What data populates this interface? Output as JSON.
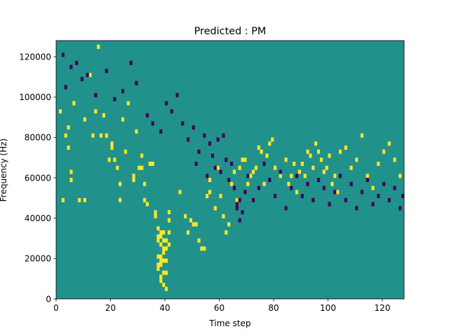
{
  "chart_data": {
    "type": "heatmap",
    "title": "Predicted : PM",
    "xlabel": "Time step",
    "ylabel": "Frequency (Hz)",
    "xlim": [
      0,
      128
    ],
    "ylim": [
      0,
      128000
    ],
    "xticks": [
      0,
      20,
      40,
      60,
      80,
      100,
      120
    ],
    "yticks": [
      0,
      20000,
      40000,
      60000,
      80000,
      100000,
      120000
    ],
    "xtick_labels": [
      "0",
      "20",
      "40",
      "60",
      "80",
      "100",
      "120"
    ],
    "ytick_labels": [
      "0",
      "20000",
      "40000",
      "60000",
      "80000",
      "100000",
      "120000"
    ],
    "grid": false,
    "colormap": "viridis",
    "levels": [
      {
        "value": 0,
        "color": "#440154"
      },
      {
        "value": 1,
        "color": "#21918c"
      },
      {
        "value": 2,
        "color": "#fde725"
      }
    ],
    "background_value": 1,
    "n_time_steps": 128,
    "n_freq_bins": 64,
    "bin_height_hz": 2000,
    "cells": {
      "high": [
        [
          1,
          46
        ],
        [
          2,
          24
        ],
        [
          3,
          40
        ],
        [
          4,
          42
        ],
        [
          4,
          37
        ],
        [
          5,
          29
        ],
        [
          5,
          31
        ],
        [
          6,
          48
        ],
        [
          8,
          24
        ],
        [
          10,
          24
        ],
        [
          10,
          44
        ],
        [
          12,
          55
        ],
        [
          13,
          40
        ],
        [
          14,
          46
        ],
        [
          15,
          62
        ],
        [
          16,
          40
        ],
        [
          17,
          45
        ],
        [
          18,
          40
        ],
        [
          19,
          34
        ],
        [
          20,
          38
        ],
        [
          20,
          37
        ],
        [
          21,
          34
        ],
        [
          22,
          32
        ],
        [
          23,
          24
        ],
        [
          23,
          28
        ],
        [
          24,
          44
        ],
        [
          25,
          36
        ],
        [
          26,
          48
        ],
        [
          28,
          30
        ],
        [
          28,
          29
        ],
        [
          29,
          41
        ],
        [
          30,
          32
        ],
        [
          31,
          35
        ],
        [
          31,
          32
        ],
        [
          32,
          28
        ],
        [
          32,
          24
        ],
        [
          33,
          23
        ],
        [
          34,
          33
        ],
        [
          35,
          33
        ],
        [
          36,
          21
        ],
        [
          36,
          20
        ],
        [
          37,
          17
        ],
        [
          37,
          15
        ],
        [
          37,
          14
        ],
        [
          37,
          10
        ],
        [
          37,
          8
        ],
        [
          37,
          7
        ],
        [
          38,
          16
        ],
        [
          38,
          15
        ],
        [
          38,
          13
        ],
        [
          38,
          10
        ],
        [
          38,
          9
        ],
        [
          38,
          8
        ],
        [
          38,
          5
        ],
        [
          38,
          4
        ],
        [
          39,
          16
        ],
        [
          39,
          14
        ],
        [
          39,
          12
        ],
        [
          39,
          11
        ],
        [
          39,
          9
        ],
        [
          39,
          6
        ],
        [
          39,
          3
        ],
        [
          40,
          14
        ],
        [
          40,
          12
        ],
        [
          40,
          9
        ],
        [
          40,
          6
        ],
        [
          40,
          2
        ],
        [
          41,
          21
        ],
        [
          41,
          19
        ],
        [
          41,
          16
        ],
        [
          41,
          13
        ],
        [
          45,
          26
        ],
        [
          47,
          20
        ],
        [
          48,
          16
        ],
        [
          49,
          19
        ],
        [
          50,
          18
        ],
        [
          51,
          18
        ],
        [
          52,
          14
        ],
        [
          53,
          12
        ],
        [
          54,
          12
        ],
        [
          55,
          25
        ],
        [
          56,
          29
        ],
        [
          56,
          26
        ],
        [
          58,
          22
        ],
        [
          59,
          32
        ],
        [
          60,
          25
        ],
        [
          61,
          20
        ],
        [
          62,
          16
        ],
        [
          63,
          18
        ],
        [
          64,
          28
        ],
        [
          65,
          31
        ],
        [
          66,
          24
        ],
        [
          67,
          32
        ],
        [
          68,
          34
        ],
        [
          69,
          34
        ],
        [
          70,
          28
        ],
        [
          71,
          30
        ],
        [
          72,
          31
        ],
        [
          73,
          32
        ],
        [
          74,
          37
        ],
        [
          75,
          36
        ],
        [
          76,
          28
        ],
        [
          77,
          35
        ],
        [
          78,
          38
        ],
        [
          79,
          39
        ],
        [
          80,
          32
        ],
        [
          82,
          30
        ],
        [
          84,
          34
        ],
        [
          85,
          28
        ],
        [
          86,
          30
        ],
        [
          87,
          33
        ],
        [
          88,
          26
        ],
        [
          89,
          31
        ],
        [
          90,
          33
        ],
        [
          91,
          30
        ],
        [
          92,
          36
        ],
        [
          93,
          35
        ],
        [
          94,
          32
        ],
        [
          95,
          38
        ],
        [
          96,
          36
        ],
        [
          97,
          34
        ],
        [
          98,
          31
        ],
        [
          99,
          32
        ],
        [
          100,
          35
        ],
        [
          101,
          28
        ],
        [
          102,
          30
        ],
        [
          103,
          26
        ],
        [
          104,
          36
        ],
        [
          106,
          37
        ],
        [
          108,
          32
        ],
        [
          110,
          34
        ],
        [
          112,
          40
        ],
        [
          114,
          30
        ],
        [
          116,
          27
        ],
        [
          118,
          33
        ],
        [
          120,
          36
        ],
        [
          122,
          38
        ],
        [
          124,
          34
        ],
        [
          126,
          30
        ]
      ],
      "low": [
        [
          2,
          60
        ],
        [
          3,
          52
        ],
        [
          5,
          57
        ],
        [
          7,
          58
        ],
        [
          9,
          54
        ],
        [
          11,
          55
        ],
        [
          14,
          50
        ],
        [
          18,
          56
        ],
        [
          21,
          49
        ],
        [
          24,
          51
        ],
        [
          27,
          58
        ],
        [
          29,
          53
        ],
        [
          33,
          45
        ],
        [
          35,
          43
        ],
        [
          38,
          41
        ],
        [
          40,
          48
        ],
        [
          42,
          46
        ],
        [
          44,
          50
        ],
        [
          46,
          43
        ],
        [
          48,
          39
        ],
        [
          50,
          42
        ],
        [
          51,
          33
        ],
        [
          52,
          36
        ],
        [
          54,
          40
        ],
        [
          55,
          30
        ],
        [
          56,
          38
        ],
        [
          57,
          35
        ],
        [
          58,
          32
        ],
        [
          59,
          39
        ],
        [
          60,
          31
        ],
        [
          61,
          40
        ],
        [
          62,
          34
        ],
        [
          63,
          29
        ],
        [
          64,
          33
        ],
        [
          65,
          27
        ],
        [
          66,
          23
        ],
        [
          66,
          22
        ],
        [
          67,
          24
        ],
        [
          67,
          19
        ],
        [
          68,
          21
        ],
        [
          69,
          26
        ],
        [
          70,
          30
        ],
        [
          72,
          24
        ],
        [
          74,
          27
        ],
        [
          76,
          33
        ],
        [
          78,
          29
        ],
        [
          80,
          25
        ],
        [
          82,
          31
        ],
        [
          84,
          22
        ],
        [
          86,
          27
        ],
        [
          88,
          30
        ],
        [
          90,
          25
        ],
        [
          92,
          28
        ],
        [
          94,
          24
        ],
        [
          96,
          29
        ],
        [
          98,
          27
        ],
        [
          100,
          23
        ],
        [
          102,
          26
        ],
        [
          104,
          30
        ],
        [
          106,
          24
        ],
        [
          108,
          28
        ],
        [
          110,
          22
        ],
        [
          112,
          26
        ],
        [
          114,
          29
        ],
        [
          116,
          23
        ],
        [
          118,
          25
        ],
        [
          120,
          28
        ],
        [
          122,
          24
        ],
        [
          124,
          27
        ],
        [
          126,
          22
        ],
        [
          127,
          25
        ]
      ]
    }
  }
}
